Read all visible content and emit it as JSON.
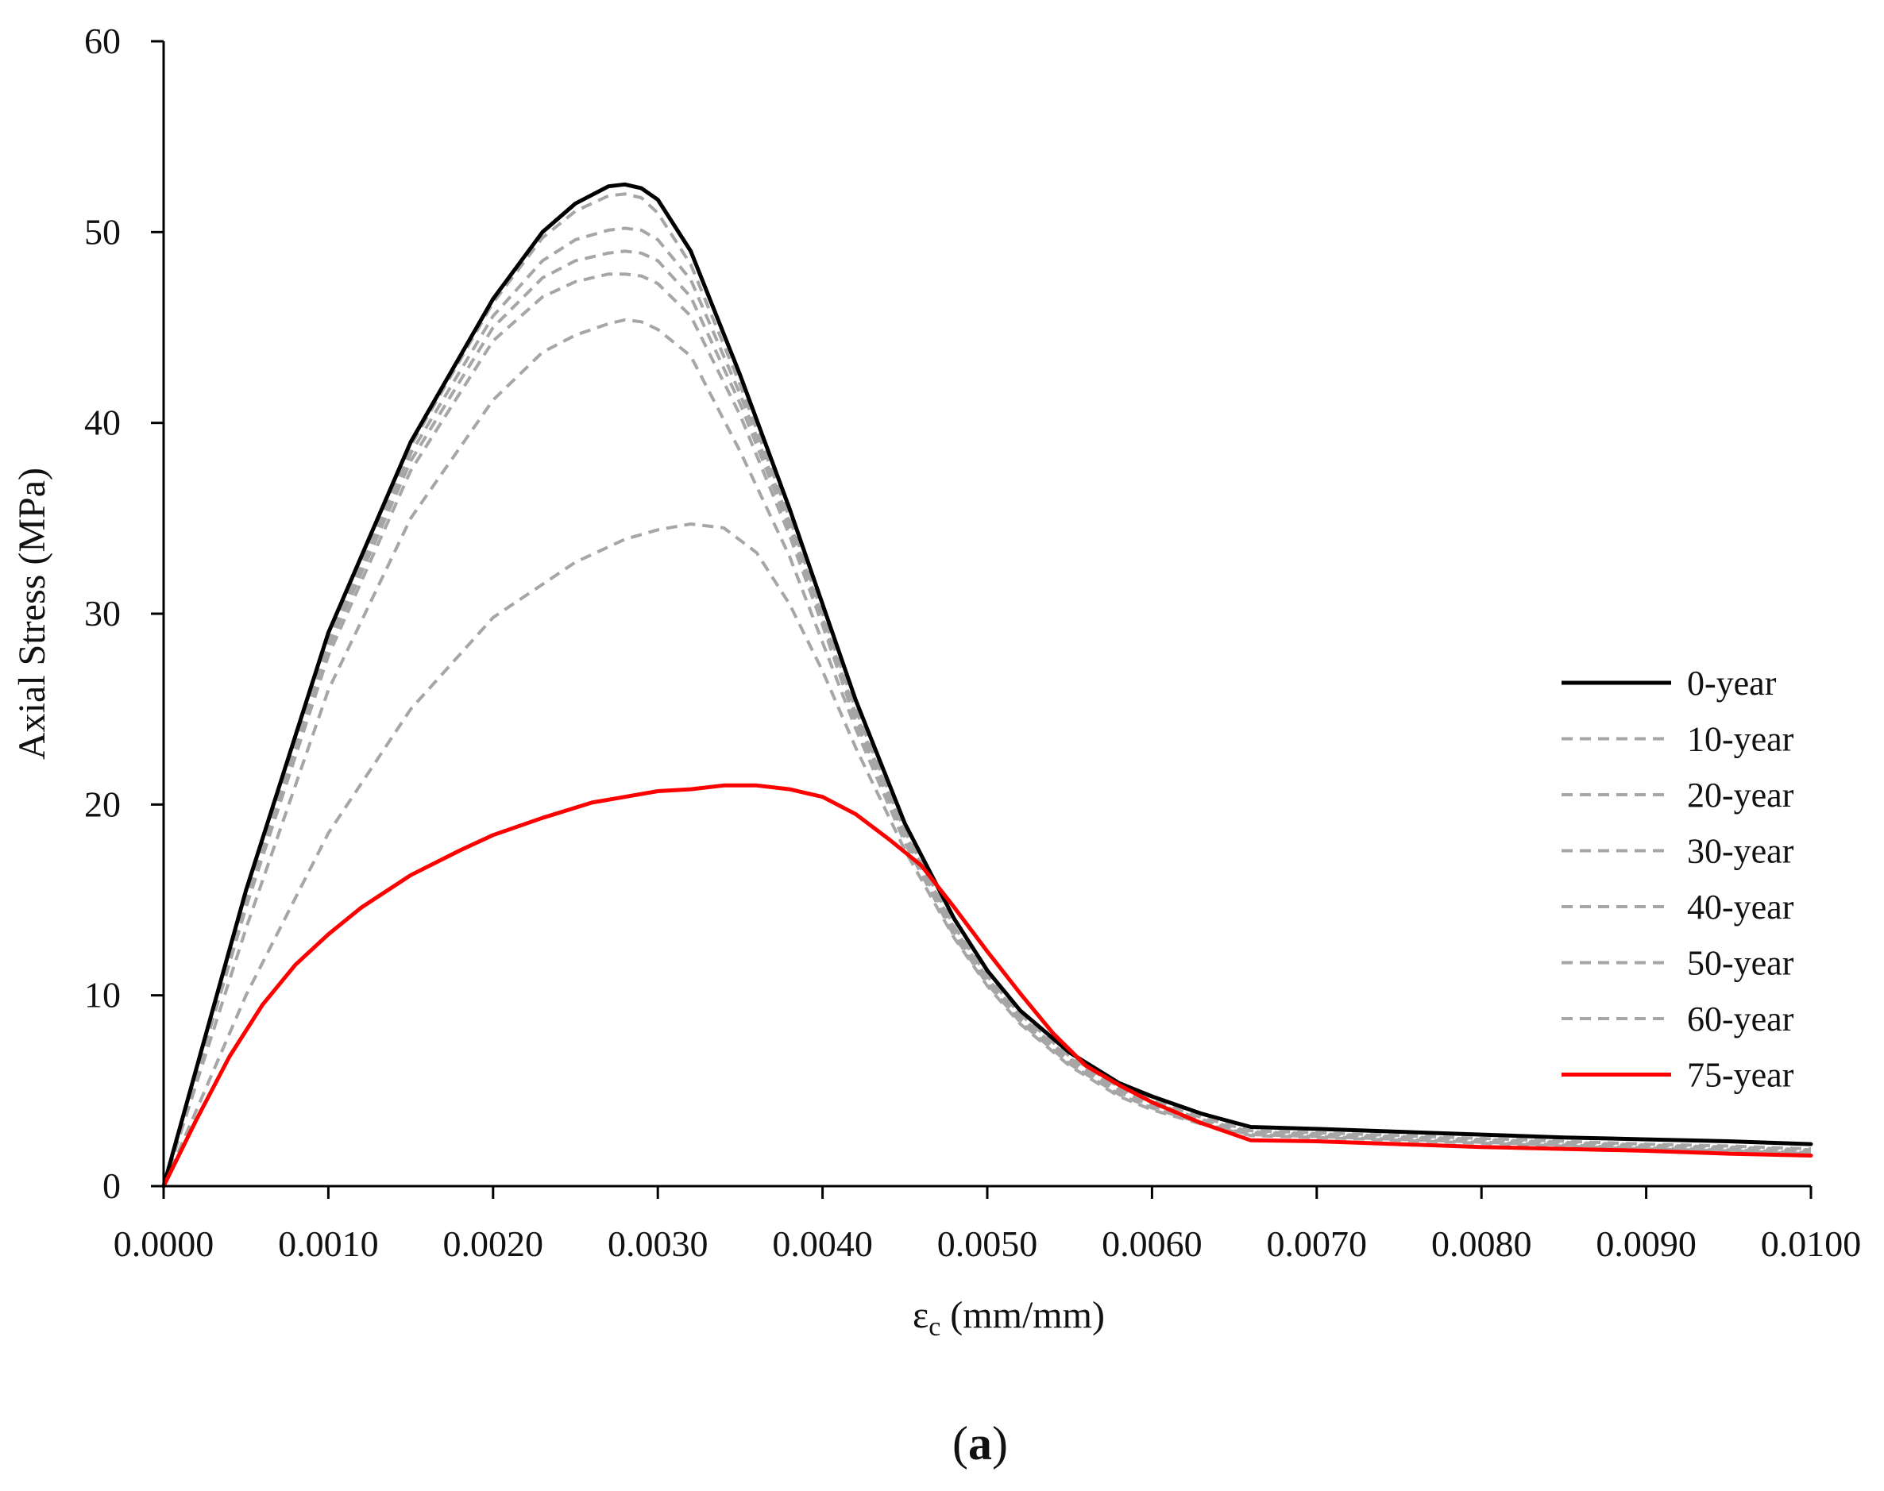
{
  "chart_data": {
    "type": "line",
    "title": "",
    "xlabel": "εc (mm/mm)",
    "xlabel_symbol": "ε",
    "xlabel_subscript": "c",
    "xlabel_unit": "(mm/mm)",
    "ylabel": "Axial Stress (MPa)",
    "xlim": [
      0,
      0.01
    ],
    "ylim": [
      0,
      60
    ],
    "x_ticks": [
      0,
      0.001,
      0.002,
      0.003,
      0.004,
      0.005,
      0.006,
      0.007,
      0.008,
      0.009,
      0.01
    ],
    "x_tick_labels": [
      "0.0000",
      "0.0010",
      "0.0020",
      "0.0030",
      "0.0040",
      "0.0050",
      "0.0060",
      "0.0070",
      "0.0080",
      "0.0090",
      "0.0100"
    ],
    "y_ticks": [
      0,
      10,
      20,
      30,
      40,
      50,
      60
    ],
    "y_tick_labels": [
      "0",
      "10",
      "20",
      "30",
      "40",
      "50",
      "60"
    ],
    "grid": false,
    "legend_position": "right",
    "panel_label": {
      "open": "(",
      "letter": "a",
      "close": ")"
    },
    "series": [
      {
        "name": "0-year",
        "color": "#000000",
        "style": "solid",
        "x": [
          0,
          0.0005,
          0.001,
          0.0015,
          0.002,
          0.0023,
          0.0025,
          0.0027,
          0.0028,
          0.0029,
          0.003,
          0.0032,
          0.0035,
          0.0038,
          0.004,
          0.0042,
          0.0045,
          0.0048,
          0.005,
          0.0052,
          0.0055,
          0.0058,
          0.006,
          0.0063,
          0.0066,
          0.007,
          0.0075,
          0.008,
          0.0085,
          0.009,
          0.0095,
          0.01
        ],
        "y": [
          0,
          15.5,
          29,
          39,
          46.5,
          50,
          51.5,
          52.4,
          52.5,
          52.3,
          51.7,
          49,
          42.5,
          35.5,
          30.5,
          25.5,
          19,
          14,
          11.3,
          9.2,
          7,
          5.4,
          4.7,
          3.8,
          3.1,
          3,
          2.85,
          2.7,
          2.55,
          2.45,
          2.35,
          2.2
        ]
      },
      {
        "name": "10-year",
        "color": "#a6a6a6",
        "style": "dashed",
        "x": [
          0,
          0.0005,
          0.001,
          0.0015,
          0.002,
          0.0023,
          0.0025,
          0.0027,
          0.0028,
          0.0029,
          0.003,
          0.0032,
          0.0035,
          0.0038,
          0.004,
          0.0042,
          0.0045,
          0.0048,
          0.005,
          0.0052,
          0.0055,
          0.0058,
          0.006,
          0.0063,
          0.0066,
          0.007,
          0.0075,
          0.008,
          0.0085,
          0.009,
          0.0095,
          0.01
        ],
        "y": [
          0,
          15.3,
          28.8,
          38.8,
          46.3,
          49.7,
          51.1,
          51.9,
          52,
          51.8,
          51,
          48.3,
          42,
          35,
          30,
          25,
          18.6,
          13.6,
          11,
          9,
          6.8,
          5.2,
          4.5,
          3.6,
          2.9,
          2.8,
          2.65,
          2.5,
          2.35,
          2.2,
          2.1,
          1.95
        ]
      },
      {
        "name": "20-year",
        "color": "#a6a6a6",
        "style": "dashed",
        "x": [
          0,
          0.0005,
          0.001,
          0.0015,
          0.002,
          0.0023,
          0.0025,
          0.0027,
          0.0028,
          0.0029,
          0.003,
          0.0032,
          0.0035,
          0.0038,
          0.004,
          0.0042,
          0.0045,
          0.0048,
          0.005,
          0.0052,
          0.0055,
          0.0058,
          0.006,
          0.0063,
          0.0066,
          0.007,
          0.0075,
          0.008,
          0.0085,
          0.009,
          0.0095,
          0.01
        ],
        "y": [
          0,
          15.1,
          28.5,
          38.4,
          45.6,
          48.5,
          49.6,
          50.1,
          50.2,
          50.1,
          49.6,
          47.5,
          41.5,
          34.8,
          29.8,
          24.8,
          18.5,
          13.5,
          10.9,
          8.9,
          6.7,
          5.1,
          4.4,
          3.5,
          2.85,
          2.75,
          2.6,
          2.45,
          2.3,
          2.15,
          2.05,
          1.9
        ]
      },
      {
        "name": "30-year",
        "color": "#a6a6a6",
        "style": "dashed",
        "x": [
          0,
          0.0005,
          0.001,
          0.0015,
          0.002,
          0.0023,
          0.0025,
          0.0027,
          0.0028,
          0.0029,
          0.003,
          0.0032,
          0.0035,
          0.0038,
          0.004,
          0.0042,
          0.0045,
          0.0048,
          0.005,
          0.0052,
          0.0055,
          0.0058,
          0.006,
          0.0063,
          0.0066,
          0.007,
          0.0075,
          0.008,
          0.0085,
          0.009,
          0.0095,
          0.01
        ],
        "y": [
          0,
          14.9,
          28.2,
          38,
          45,
          47.6,
          48.5,
          48.9,
          49,
          48.9,
          48.5,
          46.6,
          41,
          34.5,
          29.6,
          24.6,
          18.4,
          13.4,
          10.8,
          8.8,
          6.6,
          5,
          4.3,
          3.4,
          2.8,
          2.7,
          2.55,
          2.4,
          2.25,
          2.1,
          2,
          1.85
        ]
      },
      {
        "name": "40-year",
        "color": "#a6a6a6",
        "style": "dashed",
        "x": [
          0,
          0.0005,
          0.001,
          0.0015,
          0.002,
          0.0023,
          0.0025,
          0.0027,
          0.0028,
          0.0029,
          0.003,
          0.0032,
          0.0035,
          0.0038,
          0.004,
          0.0042,
          0.0045,
          0.0048,
          0.005,
          0.0052,
          0.0055,
          0.0058,
          0.006,
          0.0063,
          0.0066,
          0.007,
          0.0075,
          0.008,
          0.0085,
          0.009,
          0.0095,
          0.01
        ],
        "y": [
          0,
          14.6,
          27.8,
          37.5,
          44.3,
          46.6,
          47.4,
          47.8,
          47.8,
          47.7,
          47.3,
          45.6,
          40.4,
          34.1,
          29.4,
          24.4,
          18.3,
          13.3,
          10.7,
          8.7,
          6.5,
          4.9,
          4.2,
          3.35,
          2.75,
          2.65,
          2.5,
          2.35,
          2.2,
          2.05,
          1.95,
          1.8
        ]
      },
      {
        "name": "50-year",
        "color": "#a6a6a6",
        "style": "dashed",
        "x": [
          0,
          0.0005,
          0.001,
          0.0015,
          0.002,
          0.0023,
          0.0025,
          0.0027,
          0.0028,
          0.0029,
          0.003,
          0.0032,
          0.0035,
          0.0038,
          0.004,
          0.0042,
          0.0045,
          0.0048,
          0.005,
          0.0052,
          0.0055,
          0.0058,
          0.006,
          0.0063,
          0.0066,
          0.007,
          0.0075,
          0.008,
          0.0085,
          0.009,
          0.0095,
          0.01
        ],
        "y": [
          0,
          13.5,
          26,
          35,
          41.2,
          43.7,
          44.6,
          45.2,
          45.4,
          45.3,
          44.9,
          43.5,
          38.5,
          33,
          28.5,
          24,
          18,
          13.1,
          10.6,
          8.6,
          6.4,
          4.8,
          4.1,
          3.3,
          2.7,
          2.6,
          2.45,
          2.3,
          2.15,
          2,
          1.9,
          1.75
        ]
      },
      {
        "name": "60-year",
        "color": "#a6a6a6",
        "style": "dashed",
        "x": [
          0,
          0.0005,
          0.001,
          0.0015,
          0.002,
          0.0025,
          0.0028,
          0.003,
          0.0032,
          0.0034,
          0.0036,
          0.0038,
          0.004,
          0.0042,
          0.0045,
          0.0048,
          0.005,
          0.0052,
          0.0055,
          0.0058,
          0.006,
          0.0063,
          0.0066,
          0.007,
          0.0075,
          0.008,
          0.0085,
          0.009,
          0.0095,
          0.01
        ],
        "y": [
          0,
          10,
          18.5,
          25,
          29.8,
          32.7,
          33.9,
          34.4,
          34.7,
          34.5,
          33.2,
          30.5,
          27,
          23,
          17.6,
          13,
          10.5,
          8.5,
          6.3,
          4.7,
          4,
          3.25,
          2.65,
          2.55,
          2.4,
          2.25,
          2.1,
          1.95,
          1.85,
          1.7
        ]
      },
      {
        "name": "75-year",
        "color": "#ff0000",
        "style": "solid",
        "x": [
          0,
          0.0002,
          0.0004,
          0.0006,
          0.0008,
          0.001,
          0.0012,
          0.0015,
          0.0018,
          0.002,
          0.0023,
          0.0026,
          0.0028,
          0.003,
          0.0032,
          0.0034,
          0.0036,
          0.0038,
          0.004,
          0.0042,
          0.0044,
          0.0046,
          0.0048,
          0.005,
          0.0052,
          0.0054,
          0.0056,
          0.0058,
          0.006,
          0.0063,
          0.0066,
          0.007,
          0.0075,
          0.008,
          0.0085,
          0.009,
          0.0095,
          0.01
        ],
        "y": [
          0,
          3.5,
          6.8,
          9.5,
          11.6,
          13.2,
          14.6,
          16.3,
          17.6,
          18.4,
          19.3,
          20.1,
          20.4,
          20.7,
          20.8,
          21,
          21,
          20.8,
          20.4,
          19.5,
          18.2,
          16.8,
          14.6,
          12.3,
          10.1,
          8,
          6.3,
          5.3,
          4.4,
          3.3,
          2.4,
          2.35,
          2.2,
          2.05,
          1.95,
          1.85,
          1.7,
          1.6
        ]
      }
    ]
  }
}
